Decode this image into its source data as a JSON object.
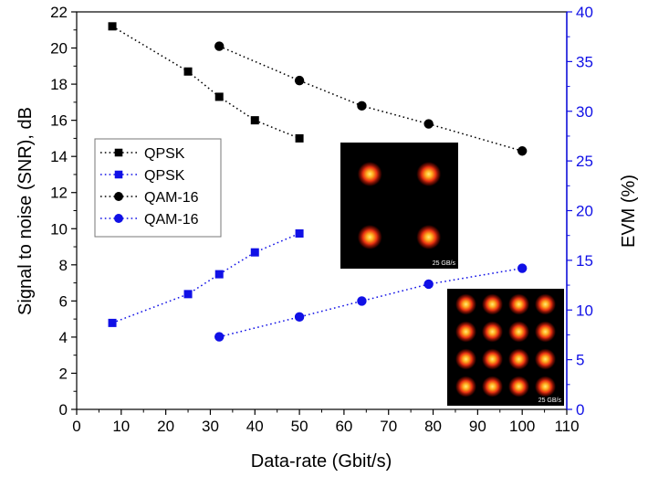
{
  "chart_data": {
    "type": "scatter",
    "xlabel": "Data-rate (Gbit/s)",
    "ylabel_left": "Signal to noise (SNR), dB",
    "ylabel_right": "EVM (%)",
    "xlim": [
      0,
      110
    ],
    "ylim_left": [
      0,
      22
    ],
    "ylim_right": [
      0,
      40
    ],
    "x_ticks": [
      "0",
      "10",
      "20",
      "30",
      "40",
      "50",
      "60",
      "70",
      "80",
      "90",
      "100",
      "110"
    ],
    "y_left_ticks": [
      "0",
      "2",
      "4",
      "6",
      "8",
      "10",
      "12",
      "14",
      "16",
      "18",
      "20",
      "22"
    ],
    "y_right_ticks": [
      "0",
      "5",
      "10",
      "15",
      "20",
      "25",
      "30",
      "35",
      "40"
    ],
    "grid": false,
    "legend_position": "left-middle",
    "series": [
      {
        "name": "QPSK",
        "axis": "left",
        "marker": "square",
        "color": "#000000",
        "x": [
          8,
          25,
          32,
          40,
          50
        ],
        "y": [
          21.2,
          18.7,
          17.3,
          16.0,
          15.0
        ]
      },
      {
        "name": "QPSK",
        "axis": "right",
        "marker": "square",
        "color": "#1010e6",
        "x": [
          8,
          25,
          32,
          40,
          50
        ],
        "y": [
          8.7,
          11.6,
          13.6,
          15.8,
          17.7
        ]
      },
      {
        "name": "QAM-16",
        "axis": "left",
        "marker": "circle",
        "color": "#000000",
        "x": [
          32,
          50,
          64,
          79,
          100
        ],
        "y": [
          20.1,
          18.2,
          16.8,
          15.8,
          14.3
        ]
      },
      {
        "name": "QAM-16",
        "axis": "right",
        "marker": "circle",
        "color": "#1010e6",
        "x": [
          32,
          50,
          64,
          79,
          100
        ],
        "y": [
          7.3,
          9.3,
          10.9,
          12.6,
          14.2
        ]
      }
    ],
    "insets": [
      {
        "label": "25 GB/s",
        "grid": 2
      },
      {
        "label": "25 GB/s",
        "grid": 4
      }
    ]
  }
}
